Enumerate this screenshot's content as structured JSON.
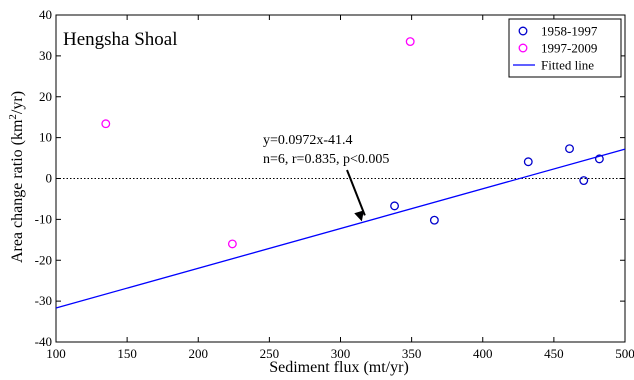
{
  "chart_data": {
    "type": "scatter",
    "title": "Hengsha Shoal",
    "xlabel": "Sediment flux (mt/yr)",
    "ylabel": "Area change ratio (km",
    "ylabel_sup": "2",
    "ylabel_suffix": "/yr)",
    "xlim": [
      100,
      500
    ],
    "ylim": [
      -40,
      40
    ],
    "xticks": [
      100,
      150,
      200,
      250,
      300,
      350,
      400,
      450,
      500
    ],
    "yticks": [
      -40,
      -30,
      -20,
      -10,
      0,
      10,
      20,
      30,
      40
    ],
    "grid": false,
    "legend_position": "top-right",
    "series": [
      {
        "name": "1958-1997",
        "color": "#0000cc",
        "marker": "circle",
        "points": [
          [
            338,
            -6.7
          ],
          [
            366,
            -10.2
          ],
          [
            432,
            4.1
          ],
          [
            461,
            7.3
          ],
          [
            471,
            -0.5
          ],
          [
            482,
            4.8
          ]
        ]
      },
      {
        "name": "1997-2009",
        "color": "#ff00ff",
        "marker": "circle",
        "points": [
          [
            135,
            13.4
          ],
          [
            224,
            -16.0
          ],
          [
            349,
            33.5
          ]
        ]
      }
    ],
    "fit": {
      "name": "Fitted line",
      "color": "#0000ff",
      "slope": 0.0972,
      "intercept": -41.4,
      "x_range": [
        100,
        500
      ]
    },
    "reference_line": {
      "y": 0,
      "style": "dotted"
    },
    "annotation": {
      "line1": "y=0.0972x-41.4",
      "line2": "n=6, r=0.835, p<0.005",
      "arrow_target": [
        315,
        -10.5
      ]
    }
  }
}
